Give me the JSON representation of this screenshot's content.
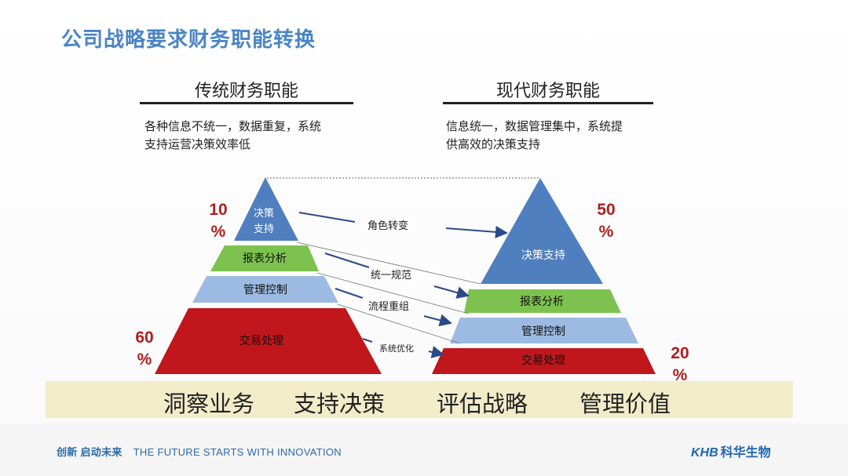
{
  "title": "公司战略要求财务职能转换",
  "left": {
    "heading": "传统财务职能",
    "desc_line1": "各种信息不统一，数据重复，系统",
    "desc_line2": "支持运营决策效率低",
    "pct_top": "10",
    "pct_bottom": "60",
    "pct_sign": "%",
    "levels": [
      "决策",
      "支持",
      "报表分析",
      "管理控制",
      "交易处理"
    ]
  },
  "right": {
    "heading": "现代财务职能",
    "desc_line1": "信息统一，数据管理集中，系统提",
    "desc_line2": "供高效的决策支持",
    "pct_top": "50",
    "pct_bottom": "20",
    "pct_sign": "%",
    "levels": [
      "决策支持",
      "报表分析",
      "管理控制",
      "交易处理"
    ]
  },
  "transitions": [
    "角色转变",
    "统一规范",
    "流程重组",
    "系统优化"
  ],
  "band": [
    "洞察业务",
    "支持决策",
    "评估战略",
    "管理价值"
  ],
  "footer": {
    "slogan_cn": "创新 启动未来",
    "slogan_en": "THE FUTURE STARTS WITH INNOVATION",
    "logo_mark": "KHB",
    "logo_cn": "科华生物"
  },
  "colors": {
    "blue": "#4f7fbf",
    "green": "#7dc24e",
    "light_blue": "#9dbbe2",
    "red": "#c0161c",
    "title_blue": "#4a84c4",
    "pct_red": "#b01e1e"
  }
}
